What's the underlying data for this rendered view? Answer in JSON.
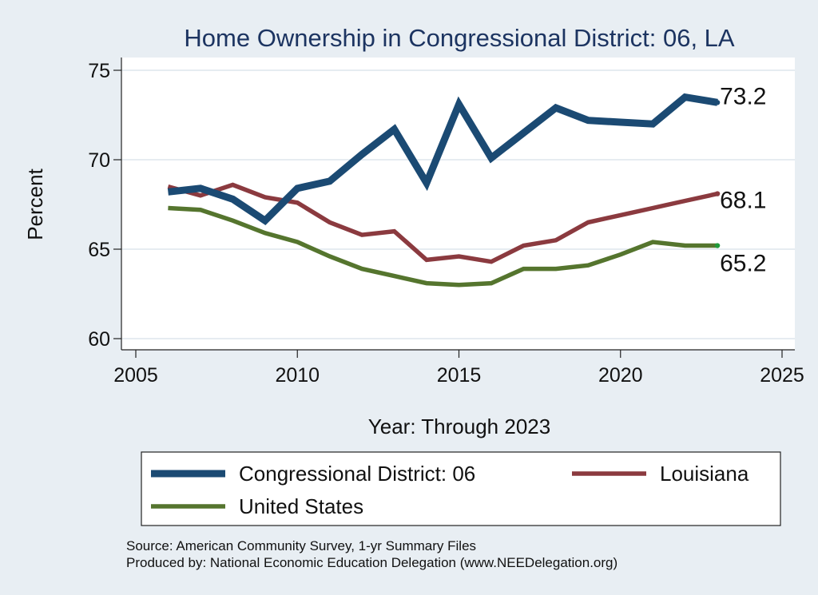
{
  "chart_data": {
    "type": "line",
    "title": "Home Ownership in Congressional District:  06, LA",
    "xlabel": "Year: Through 2023",
    "ylabel": "Percent",
    "xlim": [
      2005,
      2025
    ],
    "ylim": [
      59.5,
      75.5
    ],
    "x_ticks": [
      "2005",
      "2010",
      "2015",
      "2020",
      "2025"
    ],
    "y_ticks": [
      "60",
      "65",
      "70",
      "75"
    ],
    "grid": true,
    "legend_position": "bottom",
    "x": [
      2006,
      2007,
      2008,
      2009,
      2010,
      2011,
      2012,
      2013,
      2014,
      2015,
      2016,
      2017,
      2018,
      2019,
      2020,
      2021,
      2022,
      2023
    ],
    "series": [
      {
        "name": "Congressional District:  06",
        "color": "#1b4a73",
        "values": [
          68.2,
          68.4,
          67.8,
          66.6,
          68.4,
          68.8,
          70.3,
          71.7,
          68.7,
          73.1,
          70.1,
          71.5,
          72.9,
          72.2,
          72.1,
          72.0,
          73.5,
          73.2
        ],
        "end_label": "73.2"
      },
      {
        "name": "Louisiana",
        "color": "#8b3a3f",
        "values": [
          68.5,
          68.0,
          68.6,
          67.9,
          67.6,
          66.5,
          65.8,
          66.0,
          64.4,
          64.6,
          64.3,
          65.2,
          65.5,
          66.5,
          66.9,
          67.3,
          67.7,
          68.1
        ],
        "end_label": "68.1"
      },
      {
        "name": "United States",
        "color": "#55752e",
        "values": [
          67.3,
          67.2,
          66.6,
          65.9,
          65.4,
          64.6,
          63.9,
          63.5,
          63.1,
          63.0,
          63.1,
          63.9,
          63.9,
          64.1,
          64.7,
          65.4,
          65.2,
          65.2
        ],
        "end_label": "65.2"
      }
    ],
    "source_note": "Source: American Community Survey, 1-yr Summary Files",
    "produced_note": "Produced by: National Economic Education Delegation (www.NEEDelegation.org)"
  }
}
